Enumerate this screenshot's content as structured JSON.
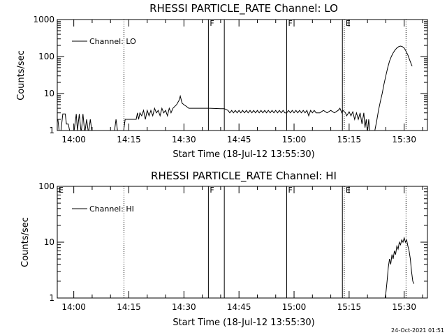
{
  "timestamp": "24-Oct-2021 01:51",
  "chart_data": [
    {
      "type": "line",
      "title": "RHESSI PARTICLE_RATE Channel: LO",
      "xlabel": "Start Time (18-Jul-12 13:55:30)",
      "ylabel": "Counts/sec",
      "xlim": [
        "13:55:30",
        "15:36:20"
      ],
      "x_ticks": [
        "14:00",
        "14:15",
        "14:30",
        "14:45",
        "15:00",
        "15:15",
        "15:30"
      ],
      "y_scale": "log",
      "ylim": [
        1,
        1000
      ],
      "y_ticks": [
        "1",
        "10",
        "100",
        "1000"
      ],
      "grid": false,
      "legend": {
        "position": "top-left",
        "entries": [
          "Channel: LO"
        ]
      },
      "series": [
        {
          "name": "Channel: LO",
          "points": [
            [
              "13:55:40",
              2
            ],
            [
              "13:56:00",
              1
            ],
            [
              "13:56:30",
              1
            ],
            [
              "13:57:00",
              2.8
            ],
            [
              "13:57:40",
              2.8
            ],
            [
              "13:58:00",
              1.5
            ],
            [
              "13:58:30",
              1.5
            ],
            [
              "13:59:00",
              0.8
            ],
            [
              "14:00:00",
              0.8
            ],
            [
              "14:00:40",
              2.8
            ],
            [
              "14:01:00",
              1
            ],
            [
              "14:01:30",
              2.8
            ],
            [
              "14:02:00",
              0.8
            ],
            [
              "14:02:30",
              2.8
            ],
            [
              "14:03:00",
              0.8
            ],
            [
              "14:03:30",
              2
            ],
            [
              "14:04:00",
              0.8
            ],
            [
              "14:04:30",
              2
            ],
            [
              "14:05:00",
              0.8
            ],
            [
              "14:08:00",
              0.8
            ],
            [
              "14:09:00",
              0.8
            ],
            [
              "14:11:00",
              0.8
            ],
            [
              "14:11:30",
              2
            ],
            [
              "14:12:00",
              0.8
            ],
            [
              "14:13:30",
              0.8
            ],
            [
              "14:14:00",
              2
            ],
            [
              "14:17:00",
              2
            ],
            [
              "14:17:20",
              3
            ],
            [
              "14:17:40",
              2
            ],
            [
              "14:18:00",
              3
            ],
            [
              "14:18:30",
              2.5
            ],
            [
              "14:19:00",
              3.5
            ],
            [
              "14:19:30",
              2
            ],
            [
              "14:20:00",
              3.5
            ],
            [
              "14:20:30",
              2.5
            ],
            [
              "14:21:00",
              3.5
            ],
            [
              "14:21:30",
              2.5
            ],
            [
              "14:22:00",
              4
            ],
            [
              "14:22:30",
              3
            ],
            [
              "14:23:00",
              3.5
            ],
            [
              "14:23:30",
              2.5
            ],
            [
              "14:24:00",
              4
            ],
            [
              "14:24:30",
              3
            ],
            [
              "14:25:00",
              3.5
            ],
            [
              "14:25:30",
              2.5
            ],
            [
              "14:26:00",
              4
            ],
            [
              "14:26:30",
              3
            ],
            [
              "14:27:00",
              4
            ],
            [
              "14:28:00",
              5
            ],
            [
              "14:28:40",
              6.5
            ],
            [
              "14:29:00",
              8.5
            ],
            [
              "14:29:30",
              5.5
            ],
            [
              "14:30:00",
              5
            ],
            [
              "14:30:40",
              4.5
            ],
            [
              "14:31:20",
              4
            ],
            [
              "14:32:00",
              4
            ],
            [
              "14:33:00",
              4
            ],
            [
              "14:34:00",
              4
            ],
            [
              "14:35:00",
              4
            ],
            [
              "14:36:00",
              4
            ],
            [
              "14:37:00",
              4
            ],
            [
              "14:40:00",
              3.9
            ],
            [
              "14:41:00",
              3.9
            ],
            [
              "14:42:00",
              3.5
            ],
            [
              "14:42:30",
              3
            ],
            [
              "14:43:00",
              3.5
            ],
            [
              "14:43:30",
              3
            ],
            [
              "14:44:00",
              3.5
            ],
            [
              "14:44:30",
              3
            ],
            [
              "14:45:00",
              3.5
            ],
            [
              "14:45:30",
              3
            ],
            [
              "14:46:00",
              3.5
            ],
            [
              "14:46:30",
              3
            ],
            [
              "14:47:00",
              3.5
            ],
            [
              "14:47:30",
              3
            ],
            [
              "14:48:00",
              3.5
            ],
            [
              "14:48:30",
              3
            ],
            [
              "14:49:00",
              3.5
            ],
            [
              "14:49:30",
              3
            ],
            [
              "14:50:00",
              3.5
            ],
            [
              "14:50:30",
              3
            ],
            [
              "14:51:00",
              3.5
            ],
            [
              "14:51:30",
              3
            ],
            [
              "14:52:00",
              3.5
            ],
            [
              "14:52:30",
              3
            ],
            [
              "14:53:00",
              3.5
            ],
            [
              "14:53:30",
              3
            ],
            [
              "14:54:00",
              3.5
            ],
            [
              "14:54:30",
              3
            ],
            [
              "14:55:00",
              3.5
            ],
            [
              "14:55:30",
              3
            ],
            [
              "14:56:00",
              3.5
            ],
            [
              "14:56:30",
              3
            ],
            [
              "14:57:00",
              3.5
            ],
            [
              "14:57:30",
              3
            ],
            [
              "14:58:00",
              3
            ],
            [
              "14:58:30",
              3.5
            ],
            [
              "14:59:00",
              3
            ],
            [
              "14:59:30",
              3.5
            ],
            [
              "15:00:00",
              3
            ],
            [
              "15:00:30",
              3.5
            ],
            [
              "15:01:00",
              3
            ],
            [
              "15:01:30",
              3.5
            ],
            [
              "15:02:00",
              3
            ],
            [
              "15:02:30",
              3.5
            ],
            [
              "15:03:00",
              3
            ],
            [
              "15:03:30",
              3.5
            ],
            [
              "15:04:00",
              2.5
            ],
            [
              "15:04:30",
              3.5
            ],
            [
              "15:05:00",
              3
            ],
            [
              "15:05:30",
              3.5
            ],
            [
              "15:06:00",
              3
            ],
            [
              "15:07:00",
              3
            ],
            [
              "15:08:00",
              3.5
            ],
            [
              "15:09:00",
              3
            ],
            [
              "15:10:00",
              3.5
            ],
            [
              "15:11:00",
              3
            ],
            [
              "15:12:00",
              3.5
            ],
            [
              "15:12:30",
              4
            ],
            [
              "15:13:00",
              3
            ],
            [
              "15:13:20",
              3.5
            ],
            [
              "15:14:00",
              3
            ],
            [
              "15:14:20",
              2.5
            ],
            [
              "15:15:00",
              3.2
            ],
            [
              "15:15:30",
              2.5
            ],
            [
              "15:16:00",
              3.2
            ],
            [
              "15:16:30",
              2
            ],
            [
              "15:17:00",
              3
            ],
            [
              "15:17:30",
              2
            ],
            [
              "15:18:00",
              3
            ],
            [
              "15:18:30",
              1.5
            ],
            [
              "15:19:00",
              3
            ],
            [
              "15:19:20",
              1.2
            ],
            [
              "15:19:40",
              2
            ],
            [
              "15:20:00",
              0.8
            ],
            [
              "15:20:20",
              2
            ],
            [
              "15:20:40",
              0.8
            ],
            [
              "15:21:30",
              0.8
            ],
            [
              "15:22:00",
              1
            ],
            [
              "15:22:30",
              1.8
            ],
            [
              "15:23:00",
              3.5
            ],
            [
              "15:23:30",
              6
            ],
            [
              "15:24:00",
              10
            ],
            [
              "15:24:30",
              18
            ],
            [
              "15:25:00",
              30
            ],
            [
              "15:25:30",
              50
            ],
            [
              "15:26:00",
              75
            ],
            [
              "15:26:30",
              100
            ],
            [
              "15:27:00",
              125
            ],
            [
              "15:27:30",
              150
            ],
            [
              "15:28:00",
              170
            ],
            [
              "15:28:30",
              185
            ],
            [
              "15:29:00",
              192
            ],
            [
              "15:29:30",
              185
            ],
            [
              "15:30:00",
              170
            ],
            [
              "15:30:30",
              140
            ],
            [
              "15:31:00",
              110
            ],
            [
              "15:31:30",
              80
            ],
            [
              "15:32:00",
              60
            ],
            [
              "15:32:10",
              55
            ]
          ]
        }
      ],
      "markers": [
        {
          "time": "14:13:40",
          "style": "dotted",
          "label": ""
        },
        {
          "time": "14:36:40",
          "style": "solid",
          "label": "F"
        },
        {
          "time": "14:41:00",
          "style": "solid",
          "label": ""
        },
        {
          "time": "14:58:00",
          "style": "solid",
          "label": "F"
        },
        {
          "time": "15:13:10",
          "style": "solid",
          "label": ""
        },
        {
          "time": "15:13:40",
          "style": "dotted",
          "label": "E"
        },
        {
          "time": "15:30:30",
          "style": "dotted",
          "label": ""
        }
      ]
    },
    {
      "type": "line",
      "title": "RHESSI PARTICLE_RATE Channel: HI",
      "xlabel": "Start Time (18-Jul-12 13:55:30)",
      "ylabel": "Counts/sec",
      "xlim": [
        "13:55:30",
        "15:36:20"
      ],
      "x_ticks": [
        "14:00",
        "14:15",
        "14:30",
        "14:45",
        "15:00",
        "15:15",
        "15:30"
      ],
      "y_scale": "log",
      "ylim": [
        1,
        100
      ],
      "y_ticks": [
        "1",
        "10",
        "100"
      ],
      "grid": false,
      "legend": {
        "position": "top-left",
        "entries": [
          "Channel: HI"
        ]
      },
      "series": [
        {
          "name": "Channel: HI",
          "points": [
            [
              "15:24:40",
              0.9
            ],
            [
              "15:25:00",
              1.2
            ],
            [
              "15:25:20",
              2
            ],
            [
              "15:25:40",
              3.5
            ],
            [
              "15:26:00",
              5
            ],
            [
              "15:26:20",
              4
            ],
            [
              "15:26:40",
              6
            ],
            [
              "15:27:00",
              5
            ],
            [
              "15:27:20",
              7
            ],
            [
              "15:27:40",
              6
            ],
            [
              "15:28:00",
              8.5
            ],
            [
              "15:28:20",
              7.5
            ],
            [
              "15:28:40",
              10
            ],
            [
              "15:29:00",
              9
            ],
            [
              "15:29:20",
              11
            ],
            [
              "15:29:40",
              10
            ],
            [
              "15:30:00",
              12
            ],
            [
              "15:30:20",
              10
            ],
            [
              "15:30:40",
              11
            ],
            [
              "15:31:00",
              8.5
            ],
            [
              "15:31:20",
              7
            ],
            [
              "15:31:40",
              5
            ],
            [
              "15:32:00",
              3
            ],
            [
              "15:32:20",
              2
            ],
            [
              "15:32:40",
              1.8
            ]
          ]
        }
      ],
      "markers": [
        {
          "time": "13:55:30",
          "style": "none",
          "label": "E"
        },
        {
          "time": "14:13:40",
          "style": "dotted",
          "label": ""
        },
        {
          "time": "14:36:40",
          "style": "solid",
          "label": "F"
        },
        {
          "time": "14:41:00",
          "style": "solid",
          "label": ""
        },
        {
          "time": "14:58:00",
          "style": "solid",
          "label": "F"
        },
        {
          "time": "15:13:10",
          "style": "solid",
          "label": ""
        },
        {
          "time": "15:13:40",
          "style": "dotted",
          "label": "E"
        },
        {
          "time": "15:30:30",
          "style": "dotted",
          "label": ""
        }
      ]
    }
  ]
}
